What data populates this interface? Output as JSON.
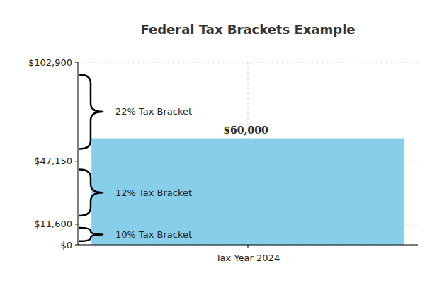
{
  "chart_data": {
    "type": "bar",
    "title": "Federal Tax Brackets Example",
    "categories": [
      "Tax Year 2024"
    ],
    "values": [
      60000
    ],
    "value_labels": [
      "$60,000"
    ],
    "color": "#87ceeb",
    "ylim": [
      0,
      102900
    ],
    "yticks": [
      {
        "value": 0,
        "label": "$0"
      },
      {
        "value": 11600,
        "label": "$11,600"
      },
      {
        "value": 47150,
        "label": "$47,150"
      },
      {
        "value": 102900,
        "label": "$102,900"
      }
    ],
    "grid": true,
    "data_labels": true,
    "annotations": [
      {
        "text": "10% Tax Bracket",
        "from": 0,
        "to": 11600
      },
      {
        "text": "12% Tax Bracket",
        "from": 11600,
        "to": 47150
      },
      {
        "text": "22% Tax Bracket",
        "from": 47150,
        "to": 102900
      }
    ]
  }
}
